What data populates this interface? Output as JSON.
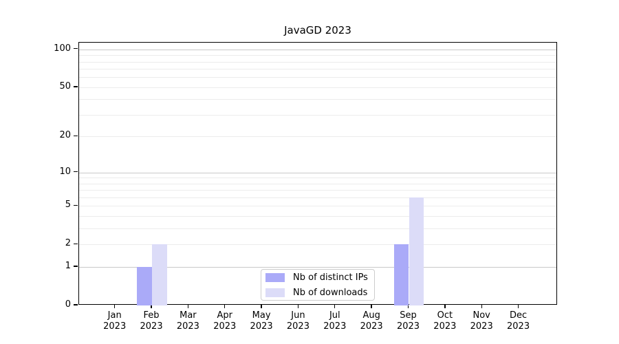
{
  "chart_data": {
    "type": "bar",
    "title": "JavaGD 2023",
    "xlabel": "",
    "ylabel": "",
    "categories": [
      "Jan 2023",
      "Feb 2023",
      "Mar 2023",
      "Apr 2023",
      "May 2023",
      "Jun 2023",
      "Jul 2023",
      "Aug 2023",
      "Sep 2023",
      "Oct 2023",
      "Nov 2023",
      "Dec 2023"
    ],
    "series": [
      {
        "name": "Nb of distinct IPs",
        "color": "#aaaaf8",
        "values": [
          0,
          1,
          0,
          0,
          0,
          0,
          0,
          0,
          2,
          0,
          0,
          0
        ]
      },
      {
        "name": "Nb of downloads",
        "color": "#dcdcf8",
        "values": [
          0,
          2,
          0,
          0,
          0,
          0,
          0,
          0,
          6,
          0,
          0,
          0
        ]
      }
    ],
    "yscale": "log1p",
    "ylim": [
      0,
      113
    ],
    "yticks": [
      0,
      1,
      2,
      5,
      10,
      20,
      50,
      100
    ],
    "ytick_labels": [
      "0",
      "1",
      "2",
      "5",
      "10",
      "20",
      "50",
      "100"
    ],
    "major_gridlines": [
      1,
      10,
      100
    ],
    "minor_gridlines": [
      2,
      3,
      4,
      5,
      6,
      7,
      8,
      9,
      20,
      30,
      40,
      50,
      60,
      70,
      80,
      90
    ],
    "grid": true,
    "legend_position": "lower center"
  },
  "colors": {
    "axis": "#000000",
    "grid_major": "#c9c9c9",
    "grid_minor": "#ececec",
    "legend_border": "#cccccc",
    "background": "#ffffff"
  }
}
